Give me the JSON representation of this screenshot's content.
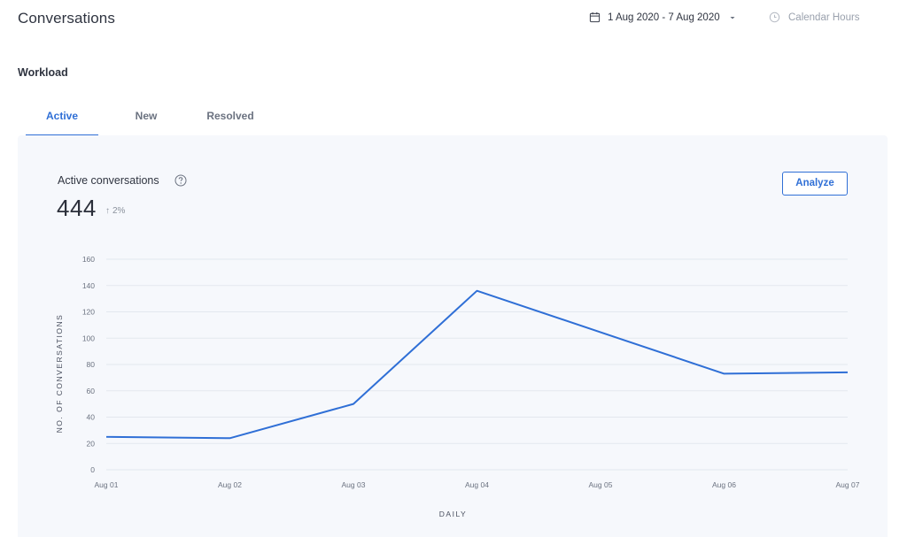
{
  "header": {
    "title": "Conversations",
    "date_range": "1 Aug 2020 - 7 Aug 2020",
    "hours_label": "Calendar Hours"
  },
  "section": {
    "title": "Workload"
  },
  "tabs": [
    {
      "label": "Active",
      "active": true
    },
    {
      "label": "New",
      "active": false
    },
    {
      "label": "Resolved",
      "active": false
    }
  ],
  "metric": {
    "title": "Active conversations",
    "value": "444",
    "change": "2%",
    "analyze_label": "Analyze"
  },
  "colors": {
    "accent": "#2f6fd6",
    "panel": "#f6f8fc",
    "grid": "#e3e7ee"
  },
  "chart_data": {
    "type": "line",
    "x": [
      "Aug 01",
      "Aug 02",
      "Aug 03",
      "Aug 04",
      "Aug 05",
      "Aug 06",
      "Aug 07"
    ],
    "series": [
      {
        "values": [
          25,
          24,
          50,
          136,
          null,
          73,
          74
        ]
      }
    ],
    "ylim": [
      0,
      160
    ],
    "yticks": [
      0,
      20,
      40,
      60,
      80,
      100,
      120,
      140,
      160
    ],
    "xlabel": "DAILY",
    "ylabel": "NO. OF CONVERSATIONS",
    "grid": true
  }
}
